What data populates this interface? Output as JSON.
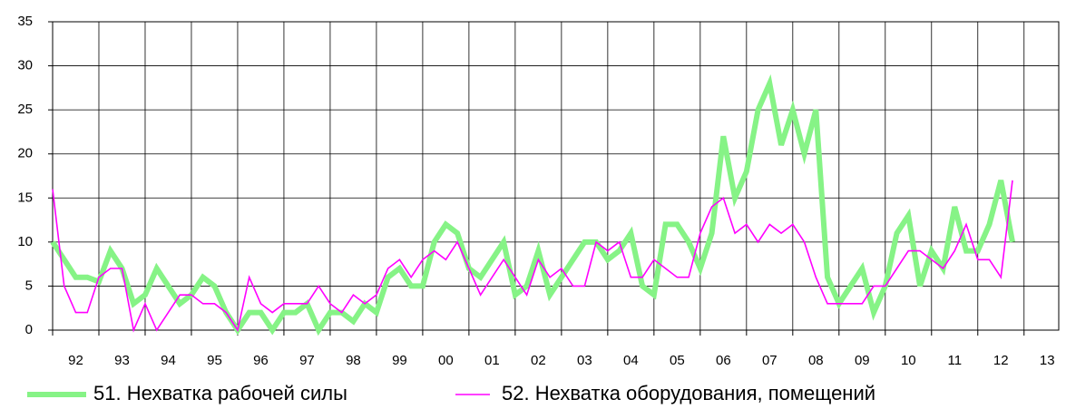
{
  "chart_data": {
    "type": "line",
    "x": [
      0,
      1,
      2,
      3,
      4,
      5,
      6,
      7,
      8,
      9,
      10,
      11,
      12,
      13,
      14,
      15,
      16,
      17,
      18,
      19,
      20,
      21,
      22,
      23,
      24,
      25,
      26,
      27,
      28,
      29,
      30,
      31,
      32,
      33,
      34,
      35,
      36,
      37,
      38,
      39,
      40,
      41,
      42,
      43,
      44,
      45,
      46,
      47,
      48,
      49,
      50,
      51,
      52,
      53,
      54,
      55,
      56,
      57,
      58,
      59,
      60,
      61,
      62,
      63,
      64,
      65,
      66,
      67,
      68,
      69,
      70,
      71,
      72,
      73,
      74,
      75,
      76,
      77,
      78,
      79,
      80,
      81,
      82,
      83
    ],
    "series": [
      {
        "name": "51. Нехватка рабочей силы",
        "color": "#86f386",
        "values": [
          10,
          8,
          6,
          6,
          5.5,
          9,
          7,
          3,
          4,
          7,
          5,
          3,
          4,
          6,
          5,
          2,
          0,
          2,
          2,
          0,
          2,
          2,
          3,
          0,
          2,
          2,
          1,
          3,
          2,
          6,
          7,
          5,
          5,
          10,
          12,
          11,
          7,
          6,
          8,
          10,
          4,
          5,
          9,
          4,
          6,
          8,
          10,
          10,
          8,
          9,
          11,
          5,
          4,
          12,
          12,
          10,
          7,
          11,
          22,
          15,
          18,
          25,
          28,
          21,
          25,
          20,
          25,
          6,
          3,
          5,
          7,
          2,
          5,
          11,
          13,
          5,
          9,
          7,
          14,
          9,
          9,
          12,
          17,
          10
        ]
      },
      {
        "name": "52. Нехватка оборудования, помещений",
        "color": "#ff00ff",
        "values": [
          16,
          5,
          2,
          2,
          6,
          7,
          7,
          0,
          3,
          0,
          2,
          4,
          4,
          3,
          3,
          2,
          0,
          6,
          3,
          2,
          3,
          3,
          3,
          5,
          3,
          2,
          4,
          3,
          4,
          7,
          8,
          6,
          8,
          9,
          8,
          10,
          7,
          4,
          6,
          8,
          6,
          4,
          8,
          6,
          7,
          5,
          5,
          10,
          9,
          10,
          6,
          6,
          8,
          7,
          6,
          6,
          11,
          14,
          15,
          11,
          12,
          10,
          12,
          11,
          12,
          10,
          6,
          3,
          3,
          3,
          3,
          5,
          5,
          7,
          9,
          9,
          8,
          7,
          9,
          12,
          8,
          8,
          6,
          17
        ]
      }
    ],
    "xlim": [
      0,
      87
    ],
    "xticks": [
      {
        "value": 2,
        "label": "92"
      },
      {
        "value": 6,
        "label": "93"
      },
      {
        "value": 10,
        "label": "94"
      },
      {
        "value": 14,
        "label": "95"
      },
      {
        "value": 18,
        "label": "96"
      },
      {
        "value": 22,
        "label": "97"
      },
      {
        "value": 26,
        "label": "98"
      },
      {
        "value": 30,
        "label": "99"
      },
      {
        "value": 34,
        "label": "00"
      },
      {
        "value": 38,
        "label": "01"
      },
      {
        "value": 42,
        "label": "02"
      },
      {
        "value": 46,
        "label": "03"
      },
      {
        "value": 50,
        "label": "04"
      },
      {
        "value": 54,
        "label": "05"
      },
      {
        "value": 58,
        "label": "06"
      },
      {
        "value": 62,
        "label": "07"
      },
      {
        "value": 66,
        "label": "08"
      },
      {
        "value": 70,
        "label": "09"
      },
      {
        "value": 74,
        "label": "10"
      },
      {
        "value": 78,
        "label": "11"
      },
      {
        "value": 82,
        "label": "12"
      },
      {
        "value": 86,
        "label": "13"
      }
    ],
    "ylim": [
      0,
      35
    ],
    "yticks": [
      0,
      5,
      10,
      15,
      20,
      25,
      30,
      35
    ],
    "grid": true,
    "legend": "bottom"
  }
}
